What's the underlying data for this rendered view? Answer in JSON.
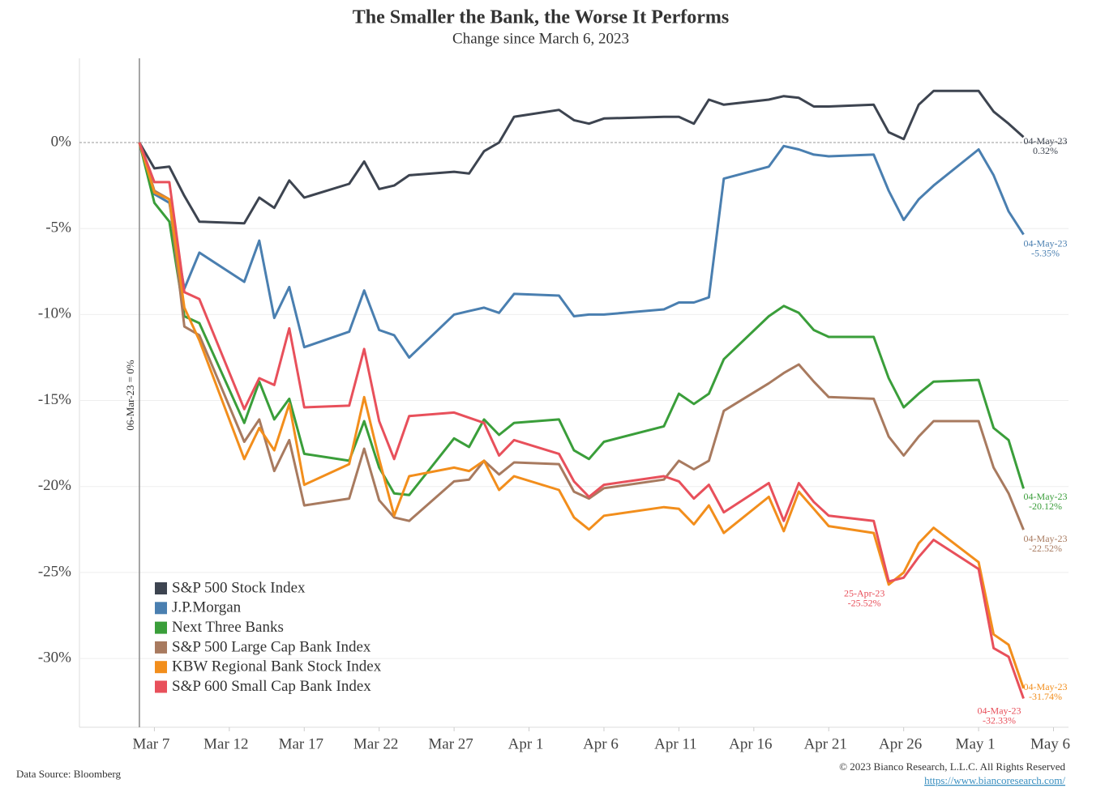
{
  "chart_data": {
    "type": "line",
    "title": "The Smaller the Bank, the Worse It Performs",
    "subtitle": "Change since March 6, 2023",
    "annotation": "06-Mar-23 = 0%",
    "source": "Data Source: Bloomberg",
    "copyright": "© 2023 Bianco Research, L.L.C. All Rights Reserved",
    "url": "https://www.biancoresearch.com/",
    "x": [
      "Mar 6",
      "Mar 7",
      "Mar 8",
      "Mar 9",
      "Mar 10",
      "Mar 13",
      "Mar 14",
      "Mar 15",
      "Mar 16",
      "Mar 17",
      "Mar 20",
      "Mar 21",
      "Mar 22",
      "Mar 23",
      "Mar 24",
      "Mar 27",
      "Mar 28",
      "Mar 29",
      "Mar 30",
      "Mar 31",
      "Apr 3",
      "Apr 4",
      "Apr 5",
      "Apr 6",
      "Apr 10",
      "Apr 11",
      "Apr 12",
      "Apr 13",
      "Apr 14",
      "Apr 17",
      "Apr 18",
      "Apr 19",
      "Apr 20",
      "Apr 21",
      "Apr 24",
      "Apr 25",
      "Apr 26",
      "Apr 27",
      "Apr 28",
      "May 1",
      "May 2",
      "May 3",
      "May 4"
    ],
    "xlim": [
      "Mar 2",
      "May 7"
    ],
    "xticks": [
      "Mar 7",
      "Mar 12",
      "Mar 17",
      "Mar 22",
      "Mar 27",
      "Apr 1",
      "Apr 6",
      "Apr 11",
      "Apr 16",
      "Apr 21",
      "Apr 26",
      "May 1",
      "May 6"
    ],
    "ylim": [
      -34,
      4.9
    ],
    "yticks": [
      {
        "value": 0,
        "label": "0%"
      },
      {
        "value": -5,
        "label": "-5%"
      },
      {
        "value": -10,
        "label": "-10%"
      },
      {
        "value": -15,
        "label": "-15%"
      },
      {
        "value": -20,
        "label": "-20%"
      },
      {
        "value": -25,
        "label": "-25%"
      },
      {
        "value": -30,
        "label": "-30%"
      }
    ],
    "grid": true,
    "legend": "lower left",
    "series": [
      {
        "name": "S&P 500 Stock Index",
        "color": "#3d4450",
        "values": [
          0,
          -1.5,
          -1.4,
          -3.1,
          -4.6,
          -4.7,
          -3.2,
          -3.8,
          -2.2,
          -3.2,
          -2.4,
          -1.1,
          -2.7,
          -2.5,
          -1.9,
          -1.7,
          -1.8,
          -0.5,
          0.0,
          1.5,
          1.9,
          1.3,
          1.1,
          1.4,
          1.5,
          1.5,
          1.1,
          2.5,
          2.2,
          2.5,
          2.7,
          2.6,
          2.1,
          2.1,
          2.2,
          0.6,
          0.2,
          2.2,
          3.0,
          3.0,
          1.8,
          1.1,
          0.32
        ],
        "value_labels": [
          null,
          null,
          null,
          null,
          null,
          null,
          null,
          null,
          null,
          null,
          null,
          null,
          null,
          null,
          null,
          null,
          null,
          null,
          null,
          null,
          null,
          null,
          null,
          null,
          null,
          null,
          null,
          null,
          null,
          null,
          null,
          null,
          null,
          null,
          null,
          null,
          null,
          null,
          null,
          null,
          null,
          null,
          "0.32%"
        ],
        "label_dates": [
          null,
          null,
          null,
          null,
          null,
          null,
          null,
          null,
          null,
          null,
          null,
          null,
          null,
          null,
          null,
          null,
          null,
          null,
          null,
          null,
          null,
          null,
          null,
          null,
          null,
          null,
          null,
          null,
          null,
          null,
          null,
          null,
          null,
          null,
          null,
          null,
          null,
          null,
          null,
          null,
          null,
          null,
          "04-May-23"
        ]
      },
      {
        "name": "J.P.Morgan",
        "color": "#4a7fb0",
        "values": [
          0,
          -3.0,
          -3.5,
          -8.5,
          -6.4,
          -8.1,
          -5.7,
          -10.2,
          -8.4,
          -11.9,
          -11.0,
          -8.6,
          -10.9,
          -11.2,
          -12.5,
          -10.0,
          -9.8,
          -9.6,
          -9.9,
          -8.8,
          -8.9,
          -10.1,
          -10.0,
          -10.0,
          -9.7,
          -9.3,
          -9.3,
          -9.0,
          -2.1,
          -1.4,
          -0.2,
          -0.4,
          -0.7,
          -0.8,
          -0.7,
          -2.8,
          -4.5,
          -3.3,
          -2.5,
          -0.4,
          -1.9,
          -4.0,
          -5.35
        ],
        "value_labels": [
          null,
          null,
          null,
          null,
          null,
          null,
          null,
          null,
          null,
          null,
          null,
          null,
          null,
          null,
          null,
          null,
          null,
          null,
          null,
          null,
          null,
          null,
          null,
          null,
          null,
          null,
          null,
          null,
          null,
          null,
          null,
          null,
          null,
          null,
          null,
          null,
          null,
          null,
          null,
          null,
          null,
          null,
          "-5.35%"
        ],
        "label_dates": [
          null,
          null,
          null,
          null,
          null,
          null,
          null,
          null,
          null,
          null,
          null,
          null,
          null,
          null,
          null,
          null,
          null,
          null,
          null,
          null,
          null,
          null,
          null,
          null,
          null,
          null,
          null,
          null,
          null,
          null,
          null,
          null,
          null,
          null,
          null,
          null,
          null,
          null,
          null,
          null,
          null,
          null,
          "04-May-23"
        ]
      },
      {
        "name": "Next Three Banks",
        "color": "#3a9e3a",
        "values": [
          0,
          -3.5,
          -4.6,
          -10.1,
          -10.5,
          -16.3,
          -13.9,
          -16.1,
          -14.9,
          -18.1,
          -18.5,
          -16.2,
          -18.9,
          -20.4,
          -20.5,
          -17.2,
          -17.7,
          -16.1,
          -17.0,
          -16.3,
          -16.1,
          -17.9,
          -18.4,
          -17.4,
          -16.5,
          -14.6,
          -15.2,
          -14.6,
          -12.6,
          -10.1,
          -9.5,
          -9.9,
          -10.9,
          -11.3,
          -11.3,
          -13.7,
          -15.4,
          -14.6,
          -13.9,
          -13.8,
          -16.6,
          -17.3,
          -20.12
        ],
        "value_labels": [
          null,
          null,
          null,
          null,
          null,
          null,
          null,
          null,
          null,
          null,
          null,
          null,
          null,
          null,
          null,
          null,
          null,
          null,
          null,
          null,
          null,
          null,
          null,
          null,
          null,
          null,
          null,
          null,
          null,
          null,
          null,
          null,
          null,
          null,
          null,
          null,
          null,
          null,
          null,
          null,
          null,
          null,
          "-20.12%"
        ],
        "label_dates": [
          null,
          null,
          null,
          null,
          null,
          null,
          null,
          null,
          null,
          null,
          null,
          null,
          null,
          null,
          null,
          null,
          null,
          null,
          null,
          null,
          null,
          null,
          null,
          null,
          null,
          null,
          null,
          null,
          null,
          null,
          null,
          null,
          null,
          null,
          null,
          null,
          null,
          null,
          null,
          null,
          null,
          null,
          "04-May-23"
        ]
      },
      {
        "name": "S&P 500 Large Cap Bank Index",
        "color": "#a87a5f",
        "values": [
          0,
          -2.8,
          -3.3,
          -10.7,
          -11.2,
          -17.4,
          -16.1,
          -19.1,
          -17.3,
          -21.1,
          -20.7,
          -17.8,
          -20.8,
          -21.8,
          -22.0,
          -19.7,
          -19.6,
          -18.5,
          -19.3,
          -18.6,
          -18.7,
          -20.3,
          -20.7,
          -20.1,
          -19.6,
          -18.5,
          -19.0,
          -18.5,
          -15.6,
          -14.0,
          -13.4,
          -12.9,
          -13.9,
          -14.8,
          -14.9,
          -17.1,
          -18.2,
          -17.1,
          -16.2,
          -16.2,
          -18.9,
          -20.4,
          -22.52
        ],
        "value_labels": [
          null,
          null,
          null,
          null,
          null,
          null,
          null,
          null,
          null,
          null,
          null,
          null,
          null,
          null,
          null,
          null,
          null,
          null,
          null,
          null,
          null,
          null,
          null,
          null,
          null,
          null,
          null,
          null,
          null,
          null,
          null,
          null,
          null,
          null,
          null,
          null,
          null,
          null,
          null,
          null,
          null,
          null,
          "-22.52%"
        ],
        "label_dates": [
          null,
          null,
          null,
          null,
          null,
          null,
          null,
          null,
          null,
          null,
          null,
          null,
          null,
          null,
          null,
          null,
          null,
          null,
          null,
          null,
          null,
          null,
          null,
          null,
          null,
          null,
          null,
          null,
          null,
          null,
          null,
          null,
          null,
          null,
          null,
          null,
          null,
          null,
          null,
          null,
          null,
          null,
          "04-May-23"
        ]
      },
      {
        "name": "KBW Regional Bank Stock Index",
        "color": "#f28e1c",
        "values": [
          0,
          -2.9,
          -3.3,
          -9.6,
          -11.5,
          -18.4,
          -16.6,
          -17.9,
          -15.2,
          -19.9,
          -18.7,
          -14.8,
          -18.4,
          -21.7,
          -19.4,
          -18.9,
          -19.1,
          -18.5,
          -20.2,
          -19.4,
          -20.2,
          -21.8,
          -22.5,
          -21.7,
          -21.2,
          -21.3,
          -22.2,
          -21.1,
          -22.7,
          -20.6,
          -22.6,
          -20.3,
          -21.3,
          -22.3,
          -22.7,
          -25.7,
          -25.0,
          -23.3,
          -22.4,
          -24.4,
          -28.6,
          -29.2,
          -31.74
        ],
        "value_labels": [
          null,
          null,
          null,
          null,
          null,
          null,
          null,
          null,
          null,
          null,
          null,
          null,
          null,
          null,
          null,
          null,
          null,
          null,
          null,
          null,
          null,
          null,
          null,
          null,
          null,
          null,
          null,
          null,
          null,
          null,
          null,
          null,
          null,
          null,
          null,
          null,
          null,
          null,
          null,
          null,
          null,
          null,
          "-31.74%"
        ],
        "label_dates": [
          null,
          null,
          null,
          null,
          null,
          null,
          null,
          null,
          null,
          null,
          null,
          null,
          null,
          null,
          null,
          null,
          null,
          null,
          null,
          null,
          null,
          null,
          null,
          null,
          null,
          null,
          null,
          null,
          null,
          null,
          null,
          null,
          null,
          null,
          null,
          null,
          null,
          null,
          null,
          null,
          null,
          null,
          "04-May-23"
        ]
      },
      {
        "name": "S&P 600 Small Cap Bank Index",
        "color": "#e8505b",
        "values": [
          0,
          -2.3,
          -2.3,
          -8.7,
          -9.1,
          -15.5,
          -13.7,
          -14.1,
          -10.8,
          -15.4,
          -15.3,
          -12.0,
          -16.2,
          -18.4,
          -15.9,
          -15.7,
          -16.0,
          -16.3,
          -18.2,
          -17.3,
          -18.1,
          -19.7,
          -20.6,
          -19.9,
          -19.4,
          -19.7,
          -20.7,
          -19.9,
          -21.5,
          -19.8,
          -22.0,
          -19.8,
          -20.9,
          -21.7,
          -22.0,
          -25.52,
          -25.3,
          -24.1,
          -23.1,
          -24.8,
          -29.4,
          -29.9,
          -32.33
        ],
        "value_labels": [
          null,
          null,
          null,
          null,
          null,
          null,
          null,
          null,
          null,
          null,
          null,
          null,
          null,
          null,
          null,
          null,
          null,
          null,
          null,
          null,
          null,
          null,
          null,
          null,
          null,
          null,
          null,
          null,
          null,
          null,
          null,
          null,
          null,
          null,
          null,
          "-25.52%",
          null,
          null,
          null,
          null,
          null,
          null,
          "-32.33%"
        ],
        "label_dates": [
          null,
          null,
          null,
          null,
          null,
          null,
          null,
          null,
          null,
          null,
          null,
          null,
          null,
          null,
          null,
          null,
          null,
          null,
          null,
          null,
          null,
          null,
          null,
          null,
          null,
          null,
          null,
          null,
          null,
          null,
          null,
          null,
          null,
          null,
          null,
          "25-Apr-23",
          null,
          null,
          null,
          null,
          null,
          null,
          "04-May-23"
        ]
      }
    ]
  }
}
